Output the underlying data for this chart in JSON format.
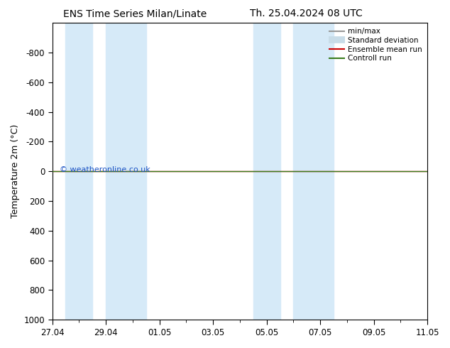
{
  "title_left": "ENS Time Series Milan/Linate",
  "title_right": "Th. 25.04.2024 08 UTC",
  "ylabel": "Temperature 2m (°C)",
  "background_color": "#ffffff",
  "plot_bg_color": "#ffffff",
  "ymin": -1000,
  "ymax": 1000,
  "yticks": [
    -800,
    -600,
    -400,
    -200,
    0,
    200,
    400,
    600,
    800,
    1000
  ],
  "xtick_labels": [
    "27.04",
    "29.04",
    "01.05",
    "03.05",
    "05.05",
    "07.05",
    "09.05",
    "11.05"
  ],
  "xtick_positions": [
    0,
    2,
    4,
    6,
    8,
    10,
    12,
    14
  ],
  "shaded_regions": [
    [
      0.5,
      1.5
    ],
    [
      2.0,
      3.5
    ],
    [
      7.5,
      8.5
    ],
    [
      9.0,
      10.5
    ]
  ],
  "shaded_color": "#d6eaf8",
  "line_color_green": "#3a7d1e",
  "line_color_red": "#cc0000",
  "watermark": "© weatheronline.co.uk",
  "watermark_color": "#1a52c4",
  "legend_items": [
    {
      "label": "min/max",
      "color": "#999999",
      "lw": 1.5,
      "type": "line"
    },
    {
      "label": "Standard deviation",
      "color": "#c8dce8",
      "lw": 7,
      "type": "line"
    },
    {
      "label": "Ensemble mean run",
      "color": "#cc0000",
      "lw": 1.5,
      "type": "line"
    },
    {
      "label": "Controll run",
      "color": "#3a7d1e",
      "lw": 1.5,
      "type": "line"
    }
  ],
  "title_fontsize": 10,
  "axis_fontsize": 9,
  "tick_fontsize": 8.5
}
